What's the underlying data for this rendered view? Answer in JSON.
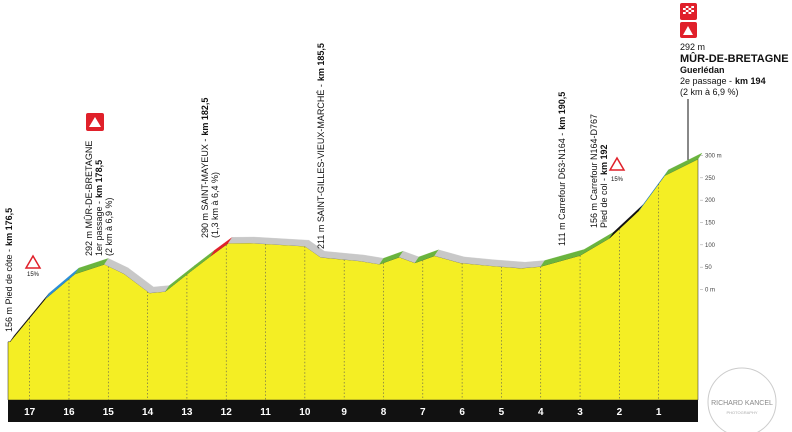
{
  "chart_data": {
    "type": "profile",
    "x": [
      17.5,
      16.6,
      15.85,
      15.1,
      14.6,
      13.95,
      13.55,
      12.9,
      12.4,
      11.95,
      11.4,
      10.0,
      9.6,
      8.6,
      8.1,
      7.6,
      7.2,
      6.7,
      6.05,
      5.3,
      4.5,
      4.0,
      3.0,
      2.25,
      1.5,
      0.85,
      0
    ],
    "values": [
      156,
      238,
      282,
      292,
      263,
      210,
      207,
      242,
      268,
      290,
      282,
      253,
      222,
      198,
      183,
      191,
      172,
      180,
      154,
      136,
      118,
      114,
      123,
      150,
      200,
      268,
      292
    ],
    "color": "#f4ee24",
    "segment_colors": [
      "#111111",
      "#2b8fd6",
      "#6ab43e",
      "#c8c8c8",
      "#c8c8c8",
      "#c8c8c8",
      "#6ab43e",
      "#6ab43e",
      "#e0202a",
      "#c8c8c8",
      "#c8c8c8",
      "#c8c8c8",
      "#c8c8c8",
      "#c8c8c8",
      "#6ab43e",
      "#c8c8c8",
      "#6ab43e",
      "#c8c8c8",
      "#c8c8c8",
      "#c8c8c8",
      "#c8c8c8",
      "#6ab43e",
      "#6ab43e",
      "#111111",
      "#2b8fd6",
      "#6ab43e"
    ],
    "xlim": [
      17.5,
      0
    ],
    "xticks": [
      17,
      16,
      15,
      14,
      13,
      12,
      11,
      10,
      9,
      8,
      7,
      6,
      5,
      4,
      3,
      2,
      1
    ],
    "ylim": [
      0,
      300
    ],
    "yticks": [
      {
        "value": 300,
        "label": "300 m"
      },
      250,
      200,
      150,
      100,
      50,
      {
        "value": 0,
        "label": "0 m"
      }
    ],
    "annotations": [
      {
        "lines": [
          {
            "text": "156 m Pied de côte -",
            "bold": "km 176,5"
          }
        ]
      },
      {
        "lines": [
          {
            "text": "292 m MÛR-DE-BRETAGNE"
          },
          {
            "text": "1er passage -",
            "bold": "km 178,5"
          },
          {
            "text": "(2 km à 6,9 %)"
          }
        ]
      },
      {
        "lines": [
          {
            "text": "290 m SAINT-MAYEUX -",
            "bold": "km 182,5"
          },
          {
            "text": "(1,3 km à 6,4 %)"
          }
        ]
      },
      {
        "lines": [
          {
            "text": "211 m SAINT-GILLES-VIEUX-MARCHÉ -",
            "bold": "km 185,5"
          }
        ]
      },
      {
        "lines": [
          {
            "text": "111 m Carrefour D63-N164 -",
            "bold": "km 190,5"
          }
        ]
      },
      {
        "lines": [
          {
            "text": "156 m Carrefour N164-D767"
          },
          {
            "text": "Pied de col -",
            "bold": "km 192"
          }
        ]
      }
    ],
    "finish": {
      "altitude": "292 m",
      "name": "MÛR-DE-BRETAGNE",
      "town": "Guerlédan",
      "passage": "2e passage -",
      "km": "km 194",
      "detail": "(2 km à 6,9 %)"
    },
    "gradient_signs": [
      "15%",
      "15%"
    ],
    "watermark": {
      "name": "RICHARD KANCEL",
      "sub": "PHOTOGRAPHY"
    }
  }
}
